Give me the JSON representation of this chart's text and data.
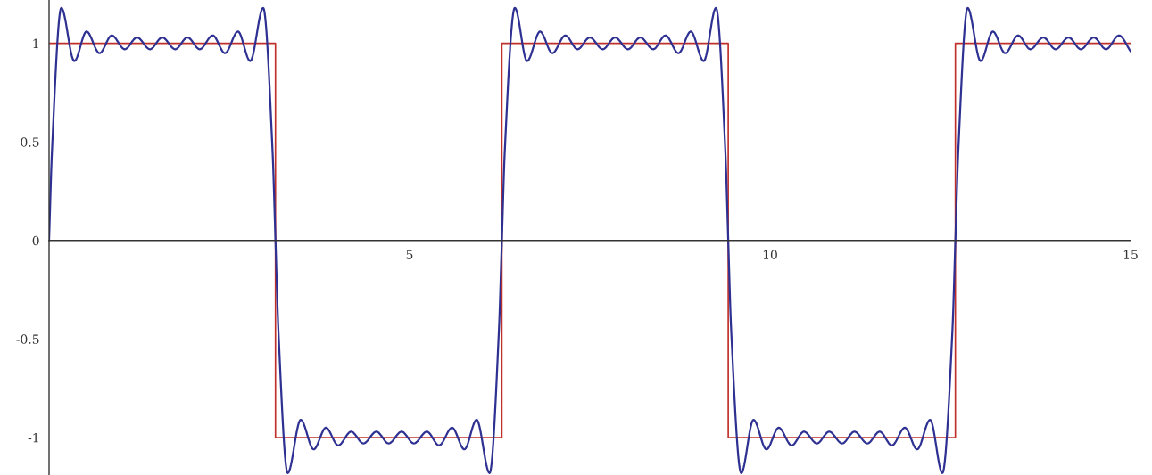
{
  "chart_data": {
    "type": "line",
    "xlim": [
      0,
      15
    ],
    "ylim": [
      -1.19,
      1.22
    ],
    "xticks": [
      5,
      10,
      15
    ],
    "yticks": [
      -1,
      -0.5,
      0,
      0.5,
      1
    ],
    "grid": false,
    "series": [
      {
        "type": "step",
        "color": "#c0302a",
        "x": [
          0,
          3.14,
          6.28,
          9.42,
          12.57,
          15
        ],
        "values": [
          1,
          -1,
          1,
          -1,
          1,
          1
        ]
      },
      {
        "color": "#2e3192",
        "x": [
          0,
          0.04,
          0.17,
          0.35,
          0.52,
          0.7,
          0.87,
          1.05,
          1.22,
          1.4,
          1.57,
          1.75,
          1.92,
          2.09,
          2.27,
          2.44,
          2.62,
          2.79,
          2.97,
          3.1,
          3.14,
          3.18,
          3.31,
          3.49,
          3.67,
          3.84,
          4.01,
          4.19,
          4.36,
          4.54,
          4.71,
          4.89,
          5.06,
          5.24,
          5.41,
          5.59,
          5.76,
          5.93,
          6.11,
          6.24,
          6.28,
          6.32,
          6.46,
          6.63,
          6.81,
          6.98,
          7.16,
          7.33,
          7.5,
          7.68,
          7.85,
          8.03,
          8.2,
          8.38,
          8.55,
          8.73,
          8.9,
          9.08,
          9.25,
          9.38,
          9.42,
          9.46,
          9.6,
          9.77,
          9.95,
          10.12,
          10.3,
          10.47,
          10.65,
          10.82,
          11.0,
          11.17,
          11.35,
          11.52,
          11.69,
          11.87,
          12.04,
          12.22,
          12.39,
          12.53,
          12.57,
          12.61,
          12.74,
          12.92,
          13.09,
          13.26,
          13.44,
          13.61,
          13.79,
          13.96,
          14.14,
          14.31,
          14.49,
          14.66,
          14.84,
          15
        ],
        "values": [
          0,
          0.45,
          1.18,
          0.91,
          1.06,
          0.95,
          1.04,
          0.97,
          1.03,
          0.97,
          1.03,
          0.97,
          1.03,
          0.97,
          1.04,
          0.95,
          1.06,
          0.91,
          1.18,
          0.45,
          0,
          -0.45,
          -1.18,
          -0.91,
          -1.06,
          -0.95,
          -1.04,
          -0.97,
          -1.03,
          -0.97,
          -1.03,
          -0.97,
          -1.03,
          -0.97,
          -1.04,
          -0.95,
          -1.06,
          -0.91,
          -1.18,
          -0.45,
          0,
          0.45,
          1.18,
          0.91,
          1.06,
          0.95,
          1.04,
          0.97,
          1.03,
          0.97,
          1.03,
          0.97,
          1.03,
          0.97,
          1.04,
          0.95,
          1.06,
          0.91,
          1.18,
          0.45,
          0,
          -0.45,
          -1.18,
          -0.91,
          -1.06,
          -0.95,
          -1.04,
          -0.97,
          -1.03,
          -0.97,
          -1.03,
          -0.97,
          -1.03,
          -0.97,
          -1.04,
          -0.95,
          -1.06,
          -0.91,
          -1.18,
          -0.45,
          0,
          0.45,
          1.18,
          0.91,
          1.06,
          0.95,
          1.04,
          0.97,
          1.03,
          0.97,
          1.03,
          0.97,
          1.03,
          0.97,
          1.04,
          0.96
        ]
      }
    ]
  }
}
